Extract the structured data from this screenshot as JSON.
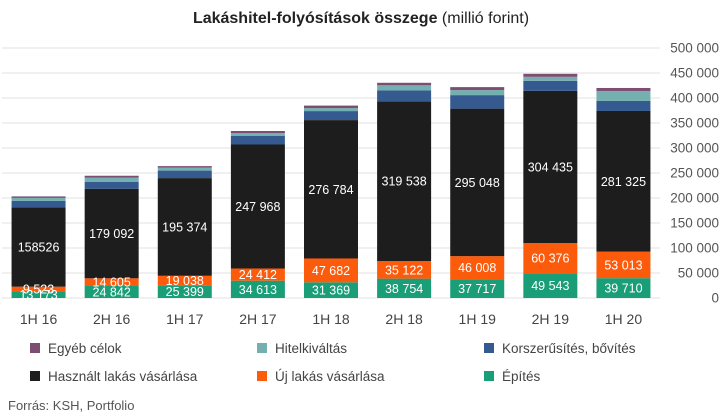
{
  "title": {
    "main": "Lakáshitel-folyósítások összege",
    "unit": "(millió forint)"
  },
  "source": "Forrás: KSH, Portfolio",
  "chart_data": {
    "type": "bar",
    "stacked": true,
    "categories": [
      "1H 16",
      "2H 16",
      "1H 17",
      "2H 17",
      "1H 18",
      "2H 18",
      "1H 19",
      "2H 19",
      "1H 20"
    ],
    "ylim": [
      0,
      500000
    ],
    "yticks": [
      0,
      50000,
      100000,
      150000,
      200000,
      250000,
      300000,
      350000,
      400000,
      450000,
      500000
    ],
    "ytick_labels": [
      "0",
      "50 000",
      "100 000",
      "150 000",
      "200 000",
      "250 000",
      "300 000",
      "350 000",
      "400 000",
      "450 000",
      "500 000"
    ],
    "y_axis_position": "right",
    "grid": true,
    "legend_position": "bottom",
    "series": [
      {
        "name": "Építés",
        "color": "#1a9e77",
        "values": [
          13173,
          24842,
          25399,
          34613,
          31369,
          38754,
          37717,
          49543,
          39710
        ],
        "labels": [
          "13 173",
          "24 842",
          "25 399",
          "34 613",
          "31 369",
          "38 754",
          "37 717",
          "49 543",
          "39 710"
        ],
        "label_color": "#ffffff"
      },
      {
        "name": "Új lakás vásárlása",
        "color": "#fc5b0c",
        "values": [
          9523,
          14605,
          19038,
          24412,
          47682,
          35122,
          46008,
          60376,
          53013
        ],
        "labels": [
          "9 523",
          "14 605",
          "19 038",
          "24 412",
          "47 682",
          "35 122",
          "46 008",
          "60 376",
          "53 013"
        ],
        "label_color": "#ffffff"
      },
      {
        "name": "Használt lakás vásárlása",
        "color": "#1d1d1d",
        "values": [
          158526,
          179092,
          195374,
          247968,
          276784,
          319538,
          295048,
          304435,
          281325
        ],
        "labels": [
          "158526",
          "179 092",
          "195 374",
          "247 968",
          "276 784",
          "319 538",
          "295 048",
          "304 435",
          "281 325"
        ],
        "label_color": "#ffffff"
      },
      {
        "name": "Korszerűsítés, bővítés",
        "color": "#355a8f",
        "values": [
          13000,
          14000,
          15000,
          17000,
          18000,
          22000,
          27000,
          20000,
          20000
        ]
      },
      {
        "name": "Hitelkiváltás",
        "color": "#75b0b0",
        "values": [
          6000,
          8000,
          6000,
          6000,
          6000,
          10000,
          10000,
          8000,
          20000
        ]
      },
      {
        "name": "Egyéb célok",
        "color": "#7d4e73",
        "values": [
          3000,
          4000,
          3000,
          4000,
          5000,
          5000,
          6000,
          6000,
          6000
        ]
      }
    ]
  },
  "legend": [
    {
      "label": "Egyéb célok",
      "color": "#7d4e73"
    },
    {
      "label": "Hitelkiváltás",
      "color": "#75b0b0"
    },
    {
      "label": "Korszerűsítés, bővítés",
      "color": "#355a8f"
    },
    {
      "label": "Használt lakás vásárlása",
      "color": "#1d1d1d"
    },
    {
      "label": "Új lakás vásárlása",
      "color": "#fc5b0c"
    },
    {
      "label": "Építés",
      "color": "#1a9e77"
    }
  ]
}
